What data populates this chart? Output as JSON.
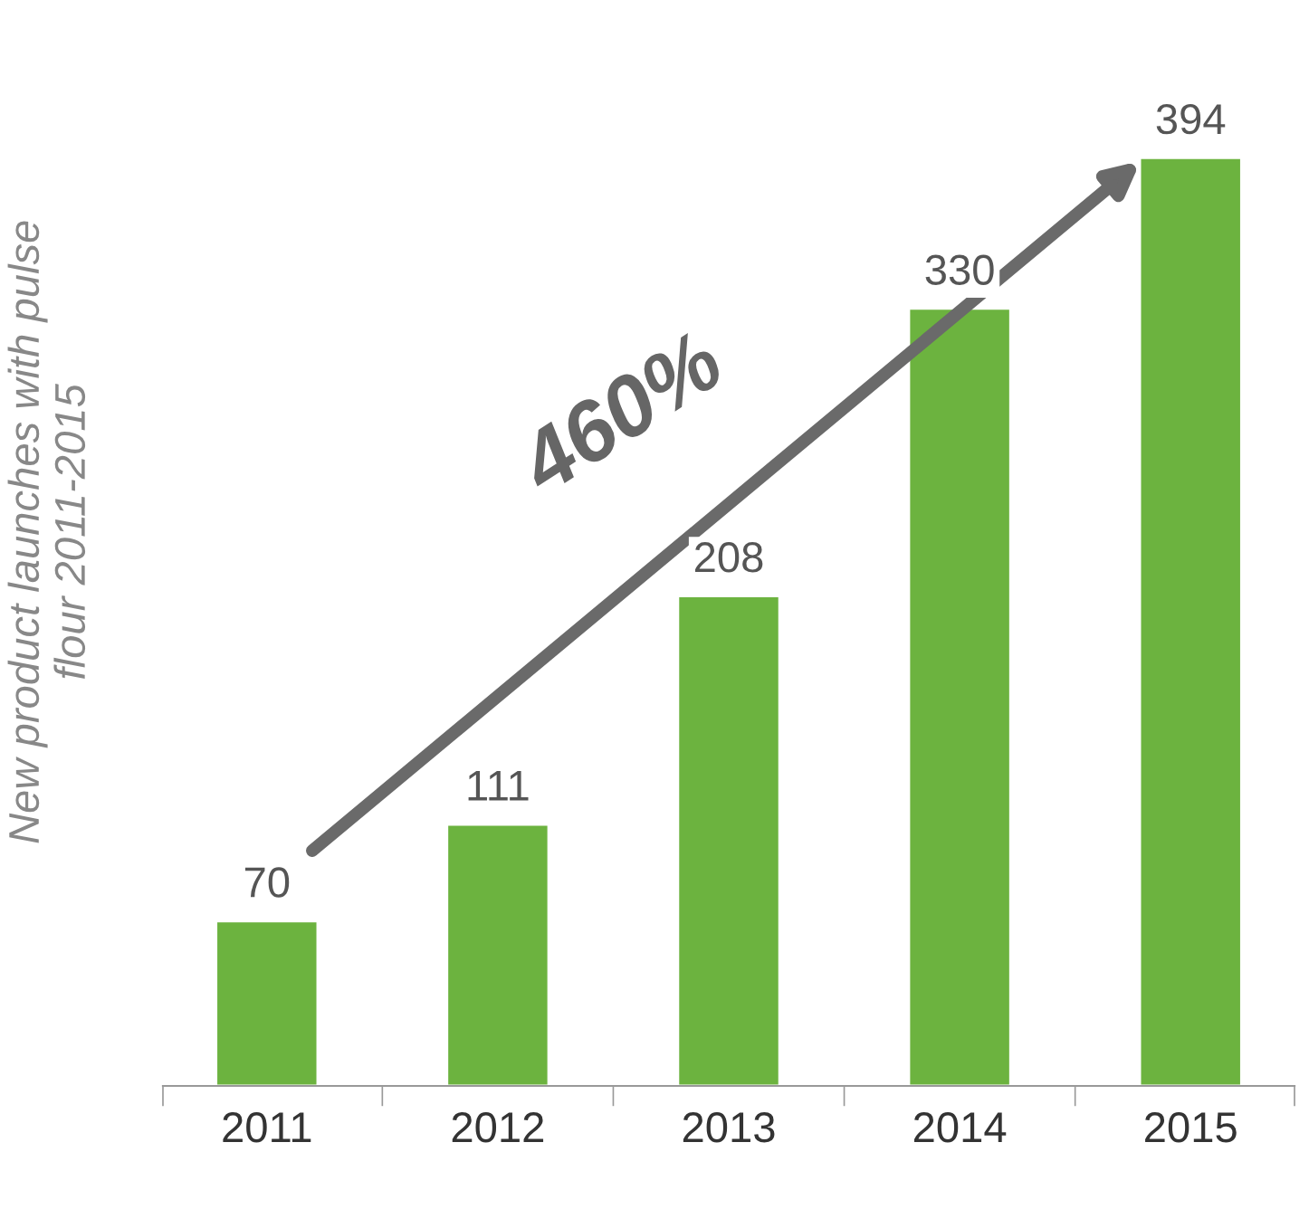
{
  "chart_data": {
    "type": "bar",
    "ylabel": "New product launches with pulse\nflour 2011-2015",
    "categories": [
      "2011",
      "2012",
      "2013",
      "2014",
      "2015"
    ],
    "values": [
      70,
      111,
      208,
      330,
      394
    ],
    "color": "#6cb33f",
    "data_labels": true,
    "annotations": [
      "460%"
    ]
  }
}
